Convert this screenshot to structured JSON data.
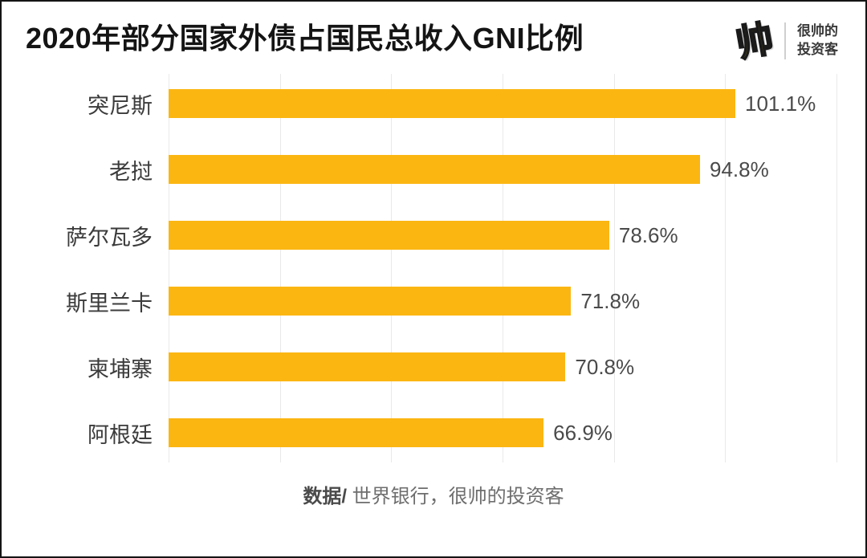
{
  "title": "2020年部分国家外债占国民总收入GNI比例",
  "logo": {
    "glyph": "帅",
    "line1": "很帅的",
    "line2": "投资客"
  },
  "footer": {
    "prefix": "数据/",
    "text": " 世界银行，很帅的投资客"
  },
  "colors": {
    "bar": "#fbb612",
    "grid": "#e9e9e9",
    "title": "#141414",
    "category_label": "#3b3b3b",
    "value_label": "#4a4a4a",
    "logo_yellow": "#ffe10a"
  },
  "chart_data": {
    "type": "bar",
    "orientation": "horizontal",
    "title": "2020年部分国家外债占国民总收入GNI比例",
    "categories": [
      "突尼斯",
      "老挝",
      "萨尔瓦多",
      "斯里兰卡",
      "柬埔寨",
      "阿根廷"
    ],
    "values": [
      101.1,
      94.8,
      78.6,
      71.8,
      70.8,
      66.9
    ],
    "value_labels": [
      "101.1%",
      "94.8%",
      "78.6%",
      "71.8%",
      "70.8%",
      "66.9%"
    ],
    "unit": "%",
    "xlabel": "",
    "ylabel": "",
    "xlim": [
      0,
      120
    ],
    "gridline_step": 20,
    "grid": true,
    "legend": false,
    "source": "数据/ 世界银行，很帅的投资客"
  }
}
